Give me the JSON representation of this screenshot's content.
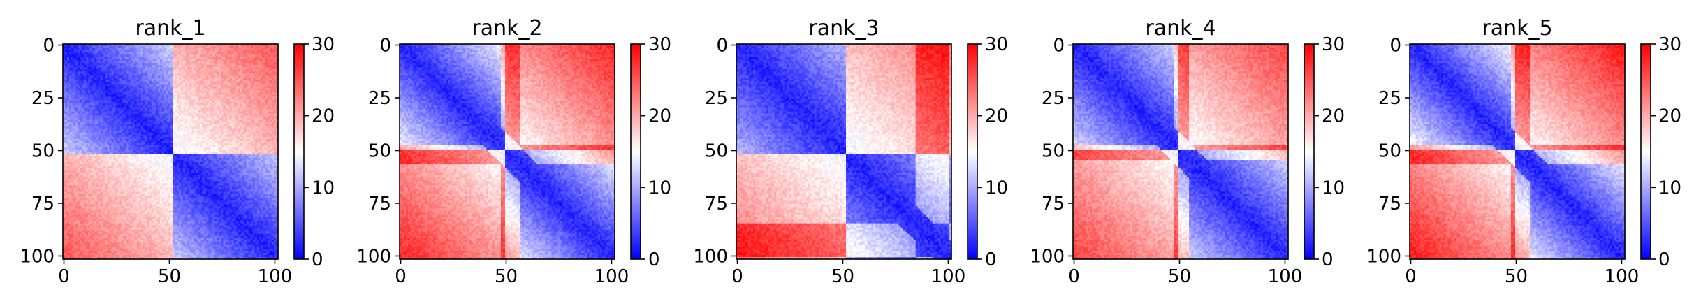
{
  "chart_data": [
    {
      "type": "heatmap",
      "title": "rank_1",
      "n": 102,
      "xticks": [
        0,
        50,
        100
      ],
      "yticks": [
        0,
        25,
        50,
        75,
        100
      ],
      "colorbar": {
        "vmin": 0,
        "vmax": 30,
        "ticks": [
          0,
          10,
          20,
          30
        ],
        "cmap": "bwr"
      },
      "structure": {
        "domain_break": 52,
        "strength": 0.9,
        "offdiag_hot_bands": []
      }
    },
    {
      "type": "heatmap",
      "title": "rank_2",
      "n": 102,
      "xticks": [
        0,
        50,
        100
      ],
      "yticks": [
        0,
        25,
        50,
        75,
        100
      ],
      "colorbar": {
        "vmin": 0,
        "vmax": 30,
        "ticks": [
          0,
          10,
          20,
          30
        ],
        "cmap": "bwr"
      },
      "structure": {
        "domain_break": 50,
        "strength": 1.15,
        "offdiag_hot_bands": [
          [
            48,
            56
          ]
        ]
      }
    },
    {
      "type": "heatmap",
      "title": "rank_3",
      "n": 102,
      "xticks": [
        0,
        50,
        100
      ],
      "yticks": [
        0,
        25,
        50,
        75,
        100
      ],
      "colorbar": {
        "vmin": 0,
        "vmax": 30,
        "ticks": [
          0,
          10,
          20,
          30
        ],
        "cmap": "bwr"
      },
      "structure": {
        "domain_break": 52,
        "strength": 0.75,
        "offdiag_hot_bands": [
          [
            85,
            100
          ]
        ]
      }
    },
    {
      "type": "heatmap",
      "title": "rank_4",
      "n": 102,
      "xticks": [
        0,
        50,
        100
      ],
      "yticks": [
        0,
        25,
        50,
        75,
        100
      ],
      "colorbar": {
        "vmin": 0,
        "vmax": 30,
        "ticks": [
          0,
          10,
          20,
          30
        ],
        "cmap": "bwr"
      },
      "structure": {
        "domain_break": 50,
        "strength": 1.0,
        "offdiag_hot_bands": [
          [
            48,
            54
          ]
        ]
      }
    },
    {
      "type": "heatmap",
      "title": "rank_5",
      "n": 102,
      "xticks": [
        0,
        50,
        100
      ],
      "yticks": [
        0,
        25,
        50,
        75,
        100
      ],
      "colorbar": {
        "vmin": 0,
        "vmax": 30,
        "ticks": [
          0,
          10,
          20,
          30
        ],
        "cmap": "bwr"
      },
      "structure": {
        "domain_break": 50,
        "strength": 1.2,
        "offdiag_hot_bands": [
          [
            48,
            56
          ]
        ]
      }
    }
  ]
}
